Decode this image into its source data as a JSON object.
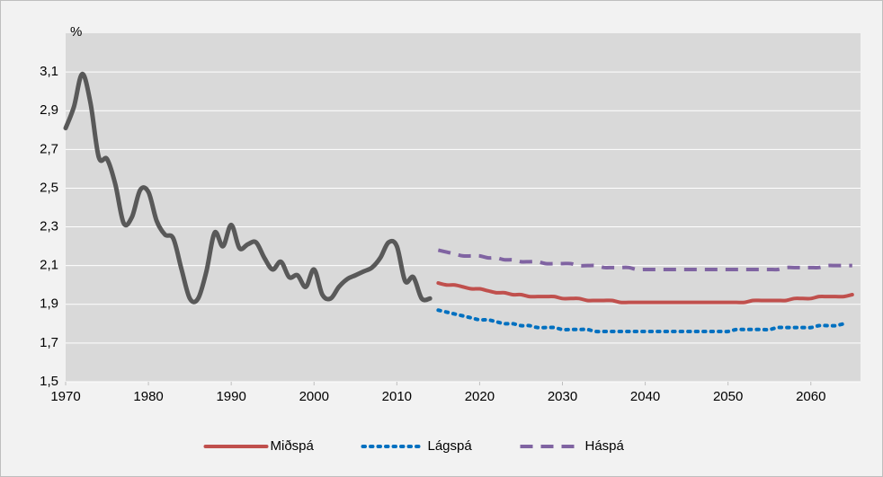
{
  "chart_data": {
    "type": "line",
    "unit_label": "%",
    "xlim": [
      1970,
      2066
    ],
    "xticks": [
      1970,
      1980,
      1990,
      2000,
      2010,
      2020,
      2030,
      2040,
      2050,
      2060
    ],
    "ylim": [
      1.5,
      3.3
    ],
    "yticks": [
      {
        "value": 1.5,
        "label": "1,5"
      },
      {
        "value": 1.7,
        "label": "1,7"
      },
      {
        "value": 1.9,
        "label": "1,9"
      },
      {
        "value": 2.1,
        "label": "2,1"
      },
      {
        "value": 2.3,
        "label": "2,3"
      },
      {
        "value": 2.5,
        "label": "2,5"
      },
      {
        "value": 2.7,
        "label": "2,7"
      },
      {
        "value": 2.9,
        "label": "2,9"
      },
      {
        "value": 3.1,
        "label": "3,1"
      }
    ],
    "grid": true,
    "legend": "bottom",
    "series": [
      {
        "color": "#595959",
        "style": "solid",
        "x": [
          1970,
          1971,
          1972,
          1973,
          1974,
          1975,
          1976,
          1977,
          1978,
          1979,
          1980,
          1981,
          1982,
          1983,
          1984,
          1985,
          1986,
          1987,
          1988,
          1989,
          1990,
          1991,
          1992,
          1993,
          1994,
          1995,
          1996,
          1997,
          1998,
          1999,
          2000,
          2001,
          2002,
          2003,
          2004,
          2005,
          2006,
          2007,
          2008,
          2009,
          2010,
          2011,
          2012,
          2013,
          2014
        ],
        "values": [
          2.81,
          2.92,
          3.09,
          2.94,
          2.66,
          2.65,
          2.52,
          2.32,
          2.35,
          2.49,
          2.48,
          2.33,
          2.26,
          2.24,
          2.08,
          1.93,
          1.93,
          2.07,
          2.27,
          2.2,
          2.31,
          2.19,
          2.21,
          2.22,
          2.14,
          2.08,
          2.12,
          2.04,
          2.05,
          1.99,
          2.08,
          1.95,
          1.93,
          1.99,
          2.03,
          2.05,
          2.07,
          2.09,
          2.14,
          2.22,
          2.2,
          2.02,
          2.04,
          1.93,
          1.93
        ]
      },
      {
        "name": "Miðspá",
        "color": "#c0504d",
        "style": "solid",
        "x": [
          2015,
          2016,
          2017,
          2018,
          2019,
          2020,
          2021,
          2022,
          2023,
          2024,
          2025,
          2026,
          2027,
          2028,
          2029,
          2030,
          2031,
          2032,
          2033,
          2034,
          2035,
          2036,
          2037,
          2038,
          2039,
          2040,
          2041,
          2042,
          2043,
          2044,
          2045,
          2046,
          2047,
          2048,
          2049,
          2050,
          2051,
          2052,
          2053,
          2054,
          2055,
          2056,
          2057,
          2058,
          2059,
          2060,
          2061,
          2062,
          2063,
          2064,
          2065
        ],
        "values": [
          2.01,
          2.0,
          2.0,
          1.99,
          1.98,
          1.98,
          1.97,
          1.96,
          1.96,
          1.95,
          1.95,
          1.94,
          1.94,
          1.94,
          1.94,
          1.93,
          1.93,
          1.93,
          1.92,
          1.92,
          1.92,
          1.92,
          1.91,
          1.91,
          1.91,
          1.91,
          1.91,
          1.91,
          1.91,
          1.91,
          1.91,
          1.91,
          1.91,
          1.91,
          1.91,
          1.91,
          1.91,
          1.91,
          1.92,
          1.92,
          1.92,
          1.92,
          1.92,
          1.93,
          1.93,
          1.93,
          1.94,
          1.94,
          1.94,
          1.94,
          1.95
        ]
      },
      {
        "name": "Lágspá",
        "color": "#0070c0",
        "style": "dotted",
        "x": [
          2015,
          2016,
          2017,
          2018,
          2019,
          2020,
          2021,
          2022,
          2023,
          2024,
          2025,
          2026,
          2027,
          2028,
          2029,
          2030,
          2031,
          2032,
          2033,
          2034,
          2035,
          2036,
          2037,
          2038,
          2039,
          2040,
          2041,
          2042,
          2043,
          2044,
          2045,
          2046,
          2047,
          2048,
          2049,
          2050,
          2051,
          2052,
          2053,
          2054,
          2055,
          2056,
          2057,
          2058,
          2059,
          2060,
          2061,
          2062,
          2063,
          2064
        ],
        "values": [
          1.87,
          1.86,
          1.85,
          1.84,
          1.83,
          1.82,
          1.82,
          1.81,
          1.8,
          1.8,
          1.79,
          1.79,
          1.78,
          1.78,
          1.78,
          1.77,
          1.77,
          1.77,
          1.77,
          1.76,
          1.76,
          1.76,
          1.76,
          1.76,
          1.76,
          1.76,
          1.76,
          1.76,
          1.76,
          1.76,
          1.76,
          1.76,
          1.76,
          1.76,
          1.76,
          1.76,
          1.77,
          1.77,
          1.77,
          1.77,
          1.77,
          1.78,
          1.78,
          1.78,
          1.78,
          1.78,
          1.79,
          1.79,
          1.79,
          1.8
        ]
      },
      {
        "name": "Háspá",
        "color": "#8064a2",
        "style": "dashed",
        "x": [
          2015,
          2016,
          2017,
          2018,
          2019,
          2020,
          2021,
          2022,
          2023,
          2024,
          2025,
          2026,
          2027,
          2028,
          2029,
          2030,
          2031,
          2032,
          2033,
          2034,
          2035,
          2036,
          2037,
          2038,
          2039,
          2040,
          2041,
          2042,
          2043,
          2044,
          2045,
          2046,
          2047,
          2048,
          2049,
          2050,
          2051,
          2052,
          2053,
          2054,
          2055,
          2056,
          2057,
          2058,
          2059,
          2060,
          2061,
          2062,
          2063,
          2064,
          2065
        ],
        "values": [
          2.18,
          2.17,
          2.16,
          2.15,
          2.15,
          2.15,
          2.14,
          2.14,
          2.13,
          2.13,
          2.12,
          2.12,
          2.12,
          2.11,
          2.11,
          2.11,
          2.11,
          2.1,
          2.1,
          2.1,
          2.09,
          2.09,
          2.09,
          2.09,
          2.08,
          2.08,
          2.08,
          2.08,
          2.08,
          2.08,
          2.08,
          2.08,
          2.08,
          2.08,
          2.08,
          2.08,
          2.08,
          2.08,
          2.08,
          2.08,
          2.08,
          2.08,
          2.09,
          2.09,
          2.09,
          2.09,
          2.09,
          2.1,
          2.1,
          2.1,
          2.1
        ]
      }
    ]
  }
}
